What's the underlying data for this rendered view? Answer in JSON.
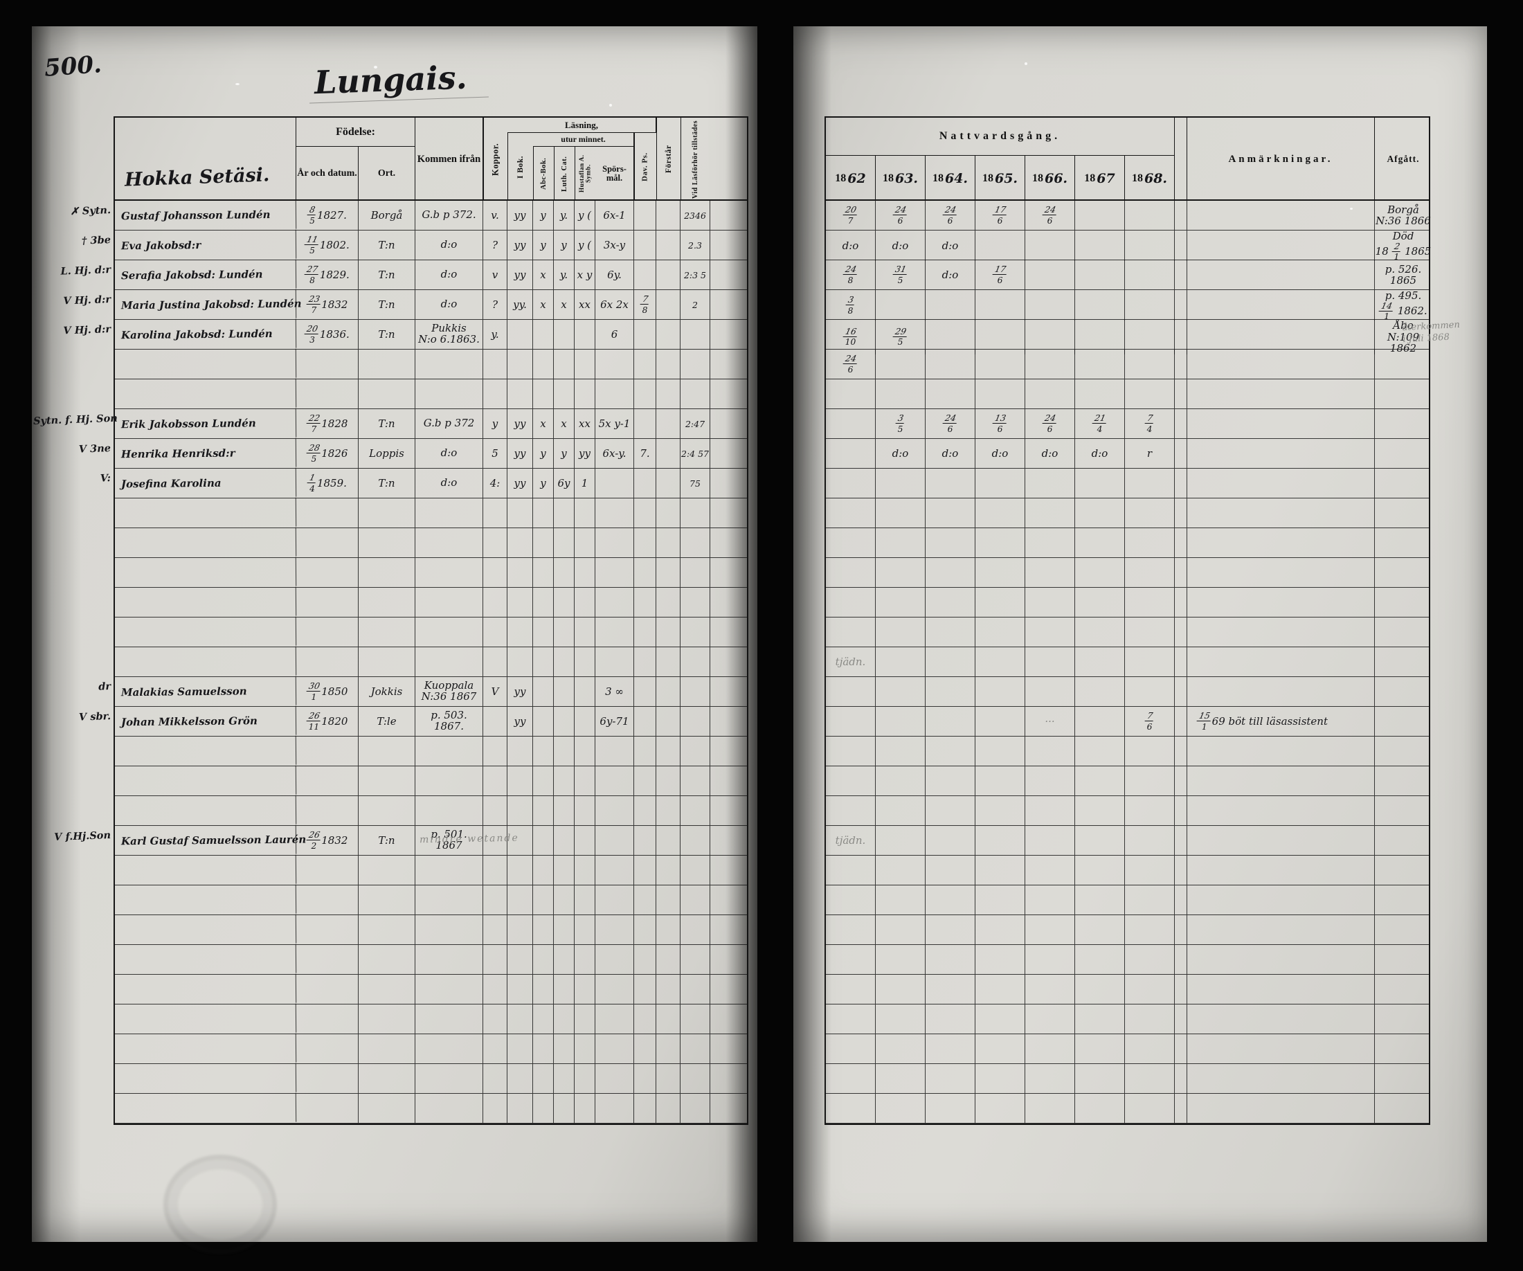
{
  "photo": {
    "background_color": "#050505",
    "paper_color": "#d9d8d3",
    "ink_color": "#17171a",
    "pencil_color": "#8a8a86"
  },
  "left_page": {
    "page_number": "500.",
    "title": "Lungais.",
    "farm_name": "Hokka Setäsi.",
    "header": {
      "fodelse": "Födelse:",
      "ar_och_datum": "År och datum.",
      "ort": "Ort.",
      "kommen_ifran": "Kommen ifrån",
      "koppor": "Koppor.",
      "lasning": "Läsning,",
      "utur_minnet": "utur minnet.",
      "i_bok": "I Bok.",
      "abc_bok": "Abc-Bok.",
      "luth_cat": "Luth. Cat.",
      "hustaflan": "Hustaflan A. Symb.",
      "sporsmal": "Spörs-mål.",
      "dav_ps": "Dav. Ps.",
      "forstar": "Förstår",
      "vid_lasforhor": "Vid Läsförhör tillstädes"
    }
  },
  "right_page": {
    "nattvardsgang": "Nattvardsgång.",
    "year_prefix": "18",
    "year_suffixes": [
      "62",
      "63.",
      "64.",
      "65.",
      "66.",
      "67",
      "68."
    ],
    "anmarkningar": "Anmärkningar.",
    "afgatt": "Afgått."
  },
  "rows": [
    {
      "m": "✗ Sytn.",
      "n": "Gustaf Johansson Lundén",
      "bd": "8/5 1827.",
      "bp": "Borgå",
      "ki": "G.b p 372.",
      "ko": "v.",
      "ib": "yy",
      "ab": "y",
      "lc": "y.",
      "hs": "y (",
      "sp": "6x-1",
      "dv": "",
      "fs": "",
      "vl": "2346",
      "y": [
        "20/7",
        "24/6",
        "24/6",
        "17/6",
        "24/6",
        "",
        ""
      ],
      "anm": "",
      "afg": "Borgå|N:36 1866"
    },
    {
      "m": "† 3be",
      "n": "Eva Jakobsd:r",
      "bd": "11/5 1802.",
      "bp": "T:n",
      "ki": "d:o",
      "ko": "?",
      "ib": "yy",
      "ab": "y",
      "lc": "y",
      "hs": "y (",
      "sp": "3x-y",
      "vl": "2.3",
      "y": [
        "d:o",
        "d:o",
        "d:o",
        "",
        "",
        "",
        ""
      ],
      "afg": "Död|18 2/1 1865"
    },
    {
      "m": "L. Hj. d:r",
      "n": "Serafia Jakobsd: Lundén",
      "bd": "27/8 1829.",
      "bp": "T:n",
      "ki": "d:o",
      "ko": "v",
      "ib": "yy",
      "ab": "x",
      "lc": "y.",
      "hs": "x y",
      "sp": "6y.",
      "vl": "2:3 5",
      "y": [
        "24/8",
        "31/5",
        "d:o",
        "17/6",
        "",
        "",
        ""
      ],
      "afg": "p. 526.|1865"
    },
    {
      "m": "V Hj. d:r",
      "n": "Maria Justina Jakobsd: Lundén",
      "bd": "23/7 1832",
      "bp": "T:n",
      "ki": "d:o",
      "ko": "?",
      "ib": "yy.",
      "ab": "x",
      "lc": "x",
      "hs": "xx",
      "sp": "6x 2x",
      "dv": "7/8",
      "vl": "2",
      "y": [
        "3/8",
        "",
        "",
        "",
        "",
        "",
        ""
      ],
      "afg": "p. 495.|14/1 1862."
    },
    {
      "m": "V Hj. d:r",
      "n": "Karolina Jakobsd: Lundén",
      "bd": "20/3 1836.",
      "bp": "T:n",
      "ki": "Pukkis|N:o 6.1863.",
      "ko": "y.",
      "sp": "6",
      "y": [
        "16/10",
        "29/5",
        "",
        "",
        "",
        "",
        ""
      ],
      "afg": "Åbo|N:109 1862",
      "mr": "återkommen|i Juli 1868"
    },
    {
      "y": [
        "24/6",
        "",
        "",
        "",
        "",
        "",
        ""
      ]
    },
    {},
    {
      "m": "Sytn. f. Hj. Son",
      "n": "Erik Jakobsson Lundén",
      "bd": "22/7 1828",
      "bp": "T:n",
      "ki": "G.b p 372",
      "ko": "y",
      "ib": "yy",
      "ab": "x",
      "lc": "x",
      "hs": "xx",
      "sp": "5x y-1",
      "vl": "2:47",
      "y": [
        "",
        "3/5",
        "24/6",
        "13/6",
        "24/6",
        "21/4",
        "7/4"
      ]
    },
    {
      "m": "V 3ne",
      "n": "Henrika Henriksd:r",
      "bd": "28/5 1826",
      "bp": "Loppis",
      "ki": "d:o",
      "ko": "5",
      "ib": "yy",
      "ab": "y",
      "lc": "y",
      "hs": "yy",
      "sp": "6x-y.",
      "dv": "7.",
      "vl": "2:4 57",
      "y": [
        "",
        "d:o",
        "d:o",
        "d:o",
        "d:o",
        "d:o",
        "r"
      ]
    },
    {
      "m": "V:",
      "n": "Josefina Karolina",
      "bd": "1/4 1859.",
      "bp": "T:n",
      "ki": "d:o",
      "ko": "4:",
      "ib": "yy",
      "ab": "y",
      "lc": "6y",
      "hs": "1",
      "vl": "75"
    },
    {},
    {},
    {},
    {},
    {},
    {
      "y": [
        "~tjädn.",
        "",
        "",
        "",
        "",
        "",
        ""
      ]
    },
    {
      "m": "dr",
      "n": "Malakias Samuelsson",
      "bd": "30/1 1850",
      "bp": "Jokkis",
      "ki": "Kuoppala|N:36 1867",
      "ko": "V",
      "ib": "yy",
      "sp": "3 ∞"
    },
    {
      "m": "V sbr.",
      "n": "Johan Mikkelsson Grön",
      "bd": "26/11 1820",
      "bp": "T:le",
      "ki": "p. 503.|1867.",
      "ib": "yy",
      "sp": "6y-71",
      "y": [
        "",
        "",
        "",
        "",
        "~···",
        "",
        "7/6"
      ],
      "anm": "15/1 69 böt till läsassistent"
    },
    {},
    {},
    {},
    {
      "m": "V f.Hj.Son",
      "n": "Karl Gustaf Samuelsson Laurén",
      "bd": "26/2 1832",
      "bp": "T:n",
      "ki": "p. 501.|1867",
      "pnote": "mindre wetande",
      "y": [
        "~tjädn.",
        "",
        "",
        "",
        "",
        "",
        ""
      ]
    },
    {},
    {},
    {},
    {},
    {},
    {},
    {},
    {},
    {}
  ],
  "stamps": {
    "right_seal": "church-seal-stamp",
    "left_faint": "faint-ring-stamp"
  }
}
